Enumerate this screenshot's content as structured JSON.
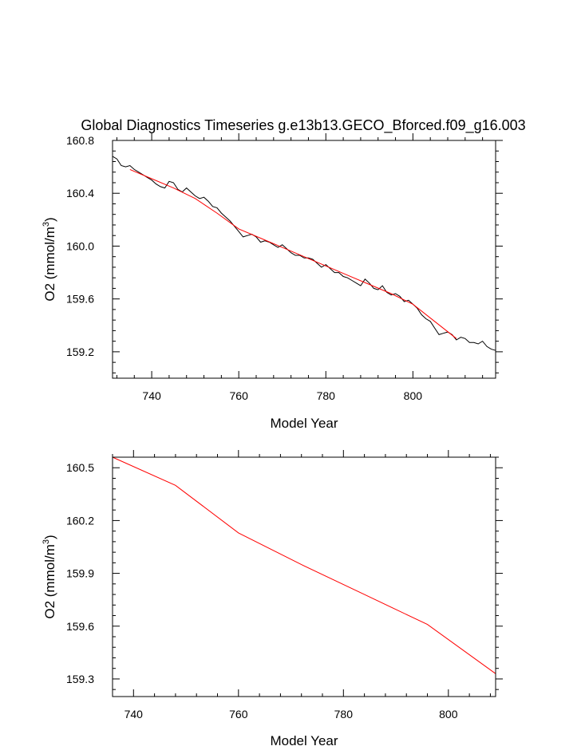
{
  "title": "Global Diagnostics Timeseries g.e13b13.GECO_Bforced.f09_g16.003",
  "chart_data": [
    {
      "type": "line",
      "xlabel": "Model Year",
      "ylabel": "O2 (mmol/m",
      "ylabel_sup": "3",
      "ylabel_close": ")",
      "xlim": [
        731,
        819
      ],
      "ylim": [
        159.0,
        160.8
      ],
      "xticks": [
        740,
        760,
        780,
        800
      ],
      "xtick_labels": [
        "740",
        "760",
        "780",
        "800"
      ],
      "yticks": [
        159.2,
        159.6,
        160.0,
        160.4,
        160.8
      ],
      "ytick_labels": [
        "159.2",
        "159.6",
        "160.0",
        "160.4",
        "160.8"
      ],
      "series": [
        {
          "color": "#000000",
          "x": [
            731,
            732,
            733,
            734,
            735,
            736,
            737,
            738,
            739,
            740,
            741,
            742,
            743,
            744,
            745,
            746,
            747,
            748,
            749,
            750,
            751,
            752,
            753,
            754,
            755,
            756,
            757,
            758,
            759,
            760,
            761,
            762,
            763,
            764,
            765,
            766,
            767,
            768,
            769,
            770,
            771,
            772,
            773,
            774,
            775,
            776,
            777,
            778,
            779,
            780,
            781,
            782,
            783,
            784,
            785,
            786,
            787,
            788,
            789,
            790,
            791,
            792,
            793,
            794,
            795,
            796,
            797,
            798,
            799,
            800,
            801,
            802,
            803,
            804,
            805,
            806,
            807,
            808,
            809,
            810,
            811,
            812,
            813,
            814,
            815,
            816,
            817,
            818,
            819
          ],
          "y": [
            160.68,
            160.66,
            160.61,
            160.6,
            160.61,
            160.58,
            160.56,
            160.54,
            160.52,
            160.5,
            160.47,
            160.45,
            160.44,
            160.49,
            160.48,
            160.43,
            160.41,
            160.44,
            160.41,
            160.38,
            160.36,
            160.37,
            160.34,
            160.3,
            160.29,
            160.25,
            160.22,
            160.19,
            160.15,
            160.11,
            160.07,
            160.08,
            160.09,
            160.07,
            160.03,
            160.04,
            160.03,
            160.01,
            159.99,
            160.01,
            159.98,
            159.95,
            159.93,
            159.93,
            159.91,
            159.91,
            159.9,
            159.87,
            159.84,
            159.86,
            159.83,
            159.8,
            159.8,
            159.77,
            159.76,
            159.74,
            159.72,
            159.7,
            159.75,
            159.72,
            159.68,
            159.67,
            159.7,
            159.65,
            159.63,
            159.64,
            159.62,
            159.58,
            159.59,
            159.56,
            159.53,
            159.48,
            159.45,
            159.43,
            159.38,
            159.33,
            159.34,
            159.35,
            159.33,
            159.29,
            159.31,
            159.3,
            159.27,
            159.27,
            159.26,
            159.28,
            159.24,
            159.22,
            159.21
          ]
        },
        {
          "color": "#ff0000",
          "x": [
            735,
            740,
            745,
            750,
            755,
            760,
            765,
            770,
            775,
            780,
            785,
            790,
            795,
            800,
            805,
            810
          ],
          "y": [
            160.58,
            160.51,
            160.44,
            160.36,
            160.25,
            160.13,
            160.06,
            159.99,
            159.92,
            159.85,
            159.78,
            159.71,
            159.64,
            159.56,
            159.43,
            159.3
          ]
        }
      ]
    },
    {
      "type": "line",
      "xlabel": "Model Year",
      "ylabel": "O2 (mmol/m",
      "ylabel_sup": "3",
      "ylabel_close": ")",
      "xlim": [
        736,
        809
      ],
      "ylim": [
        159.2,
        160.56
      ],
      "xticks": [
        740,
        760,
        780,
        800
      ],
      "xtick_labels": [
        "740",
        "760",
        "780",
        "800"
      ],
      "yticks": [
        159.3,
        159.6,
        159.9,
        160.2,
        160.5
      ],
      "ytick_labels": [
        "159.3",
        "159.6",
        "159.9",
        "160.2",
        "160.5"
      ],
      "series": [
        {
          "color": "#ff0000",
          "x": [
            736,
            748,
            760,
            772,
            784,
            796,
            809
          ],
          "y": [
            160.56,
            160.4,
            160.13,
            159.95,
            159.78,
            159.61,
            159.33
          ]
        }
      ]
    }
  ]
}
